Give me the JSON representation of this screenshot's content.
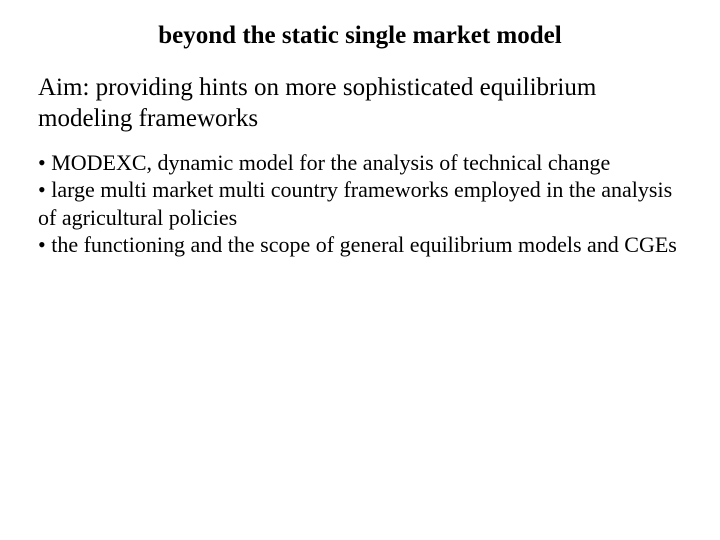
{
  "slide": {
    "title": "beyond the static single market model",
    "aim": "Aim: providing hints on more sophisticated equilibrium modeling frameworks",
    "bullets": [
      "• MODEXC, dynamic model for the analysis of technical change",
      "• large multi market multi country frameworks employed in the analysis of agricultural policies",
      "• the functioning and the scope of general equilibrium models and CGEs"
    ]
  },
  "styling": {
    "background_color": "#ffffff",
    "text_color": "#000000",
    "font_family": "Times New Roman",
    "title_fontsize": 25,
    "title_weight": "bold",
    "aim_fontsize": 25,
    "aim_weight": "normal",
    "bullet_fontsize": 22,
    "bullet_weight": "normal",
    "line_height": 1.25
  }
}
